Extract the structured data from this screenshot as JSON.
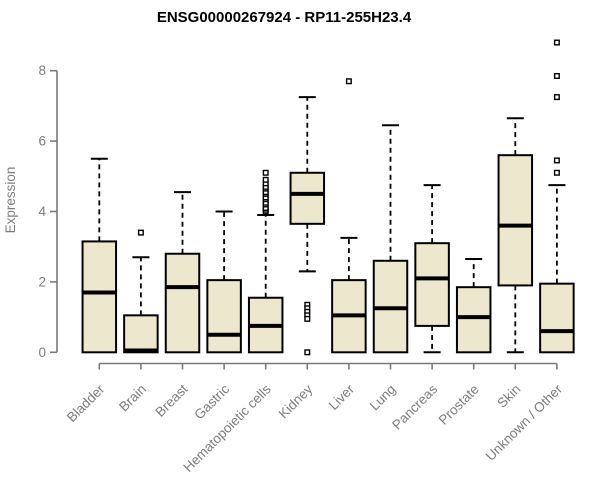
{
  "chart_data": {
    "type": "boxplot",
    "title": "ENSG00000267924 - RP11-255H23.4",
    "xlabel": "",
    "ylabel": "Expression",
    "ylim": [
      0,
      8
    ],
    "yticks": [
      0,
      2,
      4,
      6,
      8
    ],
    "grid": false,
    "legend": "none",
    "colors": {
      "box_fill": "#EDE8CD",
      "box_border": "#000000",
      "median": "#000000",
      "whisker": "#000000",
      "axis": "#7a7a7a",
      "tick_label": "#7d7d7d",
      "title": "#000000"
    },
    "categories": [
      "Bladder",
      "Brain",
      "Breast",
      "Gastric",
      "Hematopoietic cells",
      "Kidney",
      "Liver",
      "Lung",
      "Pancreas",
      "Prostate",
      "Skin",
      "Unknown / Other"
    ],
    "boxes": [
      {
        "category": "Bladder",
        "whisker_low": 0,
        "q1": 0,
        "median": 1.7,
        "q3": 3.15,
        "whisker_high": 5.5,
        "outliers": []
      },
      {
        "category": "Brain",
        "whisker_low": 0,
        "q1": 0,
        "median": 0.05,
        "q3": 1.05,
        "whisker_high": 2.7,
        "outliers": [
          3.4
        ]
      },
      {
        "category": "Breast",
        "whisker_low": 0,
        "q1": 0,
        "median": 1.85,
        "q3": 2.8,
        "whisker_high": 4.55,
        "outliers": []
      },
      {
        "category": "Gastric",
        "whisker_low": 0,
        "q1": 0,
        "median": 0.5,
        "q3": 2.05,
        "whisker_high": 4.0,
        "outliers": []
      },
      {
        "category": "Hematopoietic cells",
        "whisker_low": 0,
        "q1": 0,
        "median": 0.75,
        "q3": 1.55,
        "whisker_high": 3.9,
        "outliers": [
          4.0,
          4.05,
          4.1,
          4.2,
          4.25,
          4.35,
          4.4,
          4.5,
          4.55,
          4.65,
          4.7,
          4.8,
          4.9,
          5.1
        ]
      },
      {
        "category": "Kidney",
        "whisker_low": 2.3,
        "q1": 3.65,
        "median": 4.5,
        "q3": 5.1,
        "whisker_high": 7.25,
        "outliers": [
          1.35,
          1.25,
          1.15,
          1.05,
          0.95,
          0.0
        ]
      },
      {
        "category": "Liver",
        "whisker_low": 0,
        "q1": 0,
        "median": 1.05,
        "q3": 2.05,
        "whisker_high": 3.25,
        "outliers": [
          7.7
        ]
      },
      {
        "category": "Lung",
        "whisker_low": 0,
        "q1": 0,
        "median": 1.25,
        "q3": 2.6,
        "whisker_high": 6.45,
        "outliers": []
      },
      {
        "category": "Pancreas",
        "whisker_low": 0,
        "q1": 0.75,
        "median": 2.1,
        "q3": 3.1,
        "whisker_high": 4.75,
        "outliers": []
      },
      {
        "category": "Prostate",
        "whisker_low": 0,
        "q1": 0,
        "median": 1.0,
        "q3": 1.85,
        "whisker_high": 2.65,
        "outliers": []
      },
      {
        "category": "Skin",
        "whisker_low": 0,
        "q1": 1.9,
        "median": 3.6,
        "q3": 5.6,
        "whisker_high": 6.65,
        "outliers": []
      },
      {
        "category": "Unknown / Other",
        "whisker_low": 0,
        "q1": 0,
        "median": 0.6,
        "q3": 1.95,
        "whisker_high": 4.75,
        "outliers": [
          5.1,
          5.45,
          7.25,
          7.85,
          8.8
        ]
      }
    ]
  }
}
